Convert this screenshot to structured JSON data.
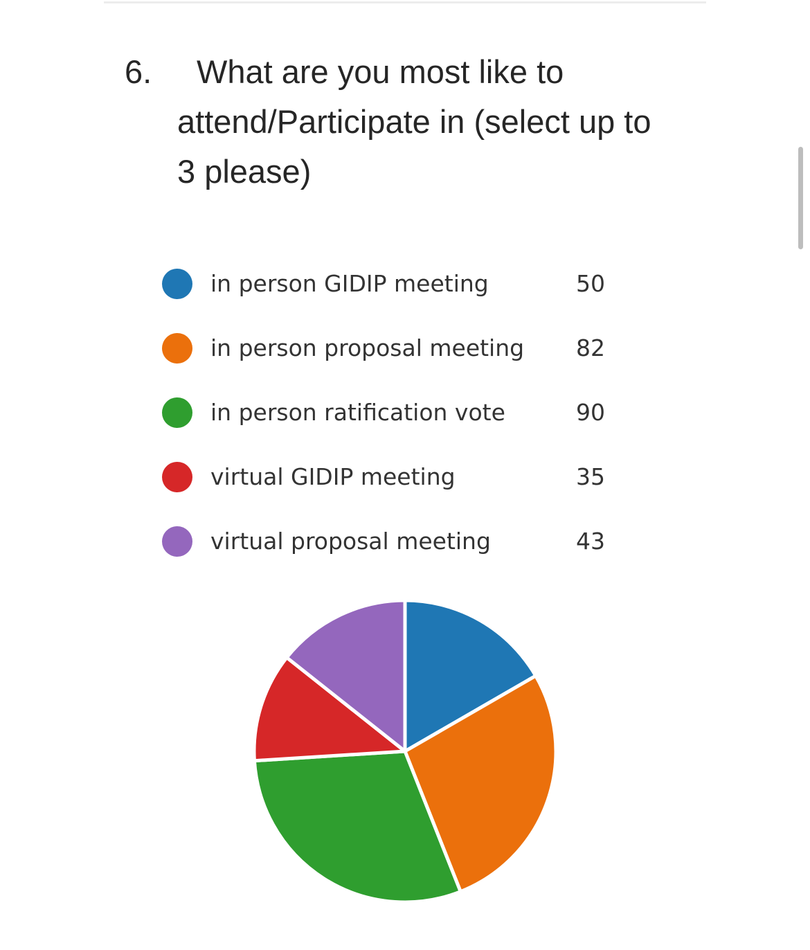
{
  "question": {
    "number": "6.",
    "line1": "What are you most like to",
    "line2": "attend/Participate in (select up to",
    "line3": "3 please)"
  },
  "chart_data": {
    "type": "pie",
    "categories": [
      "in person GIDIP meeting",
      "in person proposal meeting",
      "in person ratification vote",
      "virtual GIDIP meeting",
      "virtual proposal meeting"
    ],
    "values": [
      50,
      82,
      90,
      35,
      43
    ],
    "colors": [
      "#1f77b4",
      "#eb700c",
      "#2f9e2f",
      "#d62728",
      "#9467bd"
    ],
    "legend_position": "top",
    "start_angle": "12 o'clock, clockwise"
  }
}
